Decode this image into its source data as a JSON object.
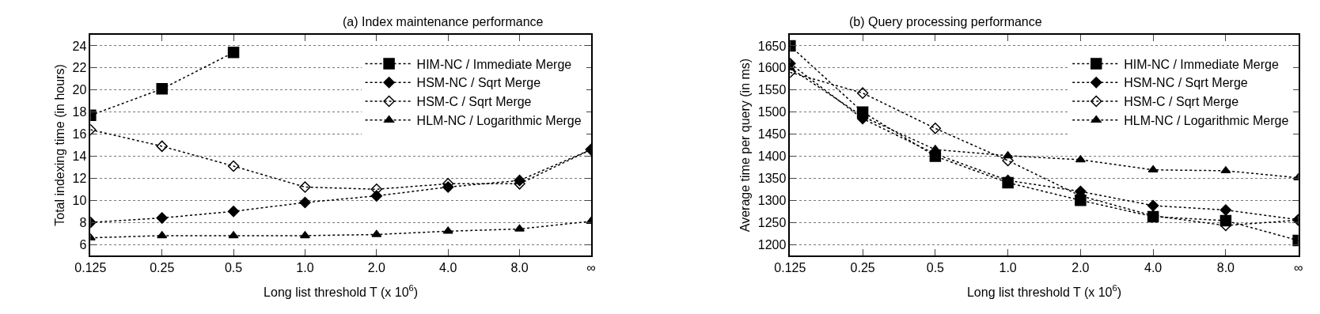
{
  "chart_data": [
    {
      "type": "line",
      "title": "(a) Index maintenance performance",
      "xlabel": "Long list threshold T (x 10$^{6}$)",
      "ylabel": "Total indexing time (in hours)",
      "categories": [
        "0.125",
        "0.25",
        "0.5",
        "1.0",
        "2.0",
        "4.0",
        "8.0",
        "∞"
      ],
      "ylim": [
        5,
        25
      ],
      "yticks": [
        6,
        8,
        10,
        12,
        14,
        16,
        18,
        20,
        22,
        24
      ],
      "grid": "y",
      "legend": "top right",
      "line_style": "dotted",
      "series": [
        {
          "name": "HIM-NC / Immediate Merge",
          "color": "#000000",
          "marker": "square",
          "values": [
            17.7,
            20.1,
            23.4,
            null,
            null,
            null,
            null,
            null
          ]
        },
        {
          "name": "HSM-NC / Sqrt Merge",
          "color": "#000000",
          "marker": "diamond",
          "values": [
            8.0,
            8.4,
            9.0,
            9.8,
            10.4,
            11.2,
            11.8,
            14.6
          ]
        },
        {
          "name": "HSM-C / Sqrt Merge",
          "color": "#000000",
          "marker": "diamond-open",
          "values": [
            16.4,
            14.9,
            13.1,
            11.2,
            11.0,
            11.5,
            11.5,
            14.6
          ]
        },
        {
          "name": "HLM-NC / Logarithmic Merge",
          "color": "#000000",
          "marker": "triangle",
          "values": [
            6.6,
            6.8,
            6.8,
            6.8,
            6.9,
            7.2,
            7.4,
            8.1
          ]
        }
      ]
    },
    {
      "type": "line",
      "title": "(b) Query processing performance",
      "xlabel": "Long list threshold T (x 10$^{6}$)",
      "ylabel": "Average time per query (in ms)",
      "categories": [
        "0.125",
        "0.25",
        "0.5",
        "1.0",
        "2.0",
        "4.0",
        "8.0",
        "∞"
      ],
      "ylim": [
        1175,
        1675
      ],
      "yticks": [
        1200,
        1250,
        1300,
        1350,
        1400,
        1450,
        1500,
        1550,
        1600,
        1650
      ],
      "grid": "y",
      "legend": "top right",
      "line_style": "dotted",
      "series": [
        {
          "name": "HIM-NC / Immediate Merge",
          "color": "#000000",
          "marker": "square",
          "values": [
            1650,
            1500,
            1400,
            1340,
            1300,
            1263,
            1254,
            1209
          ]
        },
        {
          "name": "HSM-NC / Sqrt Merge",
          "color": "#000000",
          "marker": "diamond",
          "values": [
            1610,
            1485,
            1405,
            1345,
            1320,
            1288,
            1278,
            1256
          ]
        },
        {
          "name": "HSM-C / Sqrt Merge",
          "color": "#000000",
          "marker": "diamond-open",
          "values": [
            1590,
            1543,
            1463,
            1390,
            1310,
            1265,
            1243,
            1255
          ]
        },
        {
          "name": "HLM-NC / Logarithmic Merge",
          "color": "#000000",
          "marker": "triangle",
          "values": [
            1600,
            1490,
            1415,
            1401,
            1392,
            1369,
            1367,
            1351
          ]
        }
      ]
    }
  ]
}
